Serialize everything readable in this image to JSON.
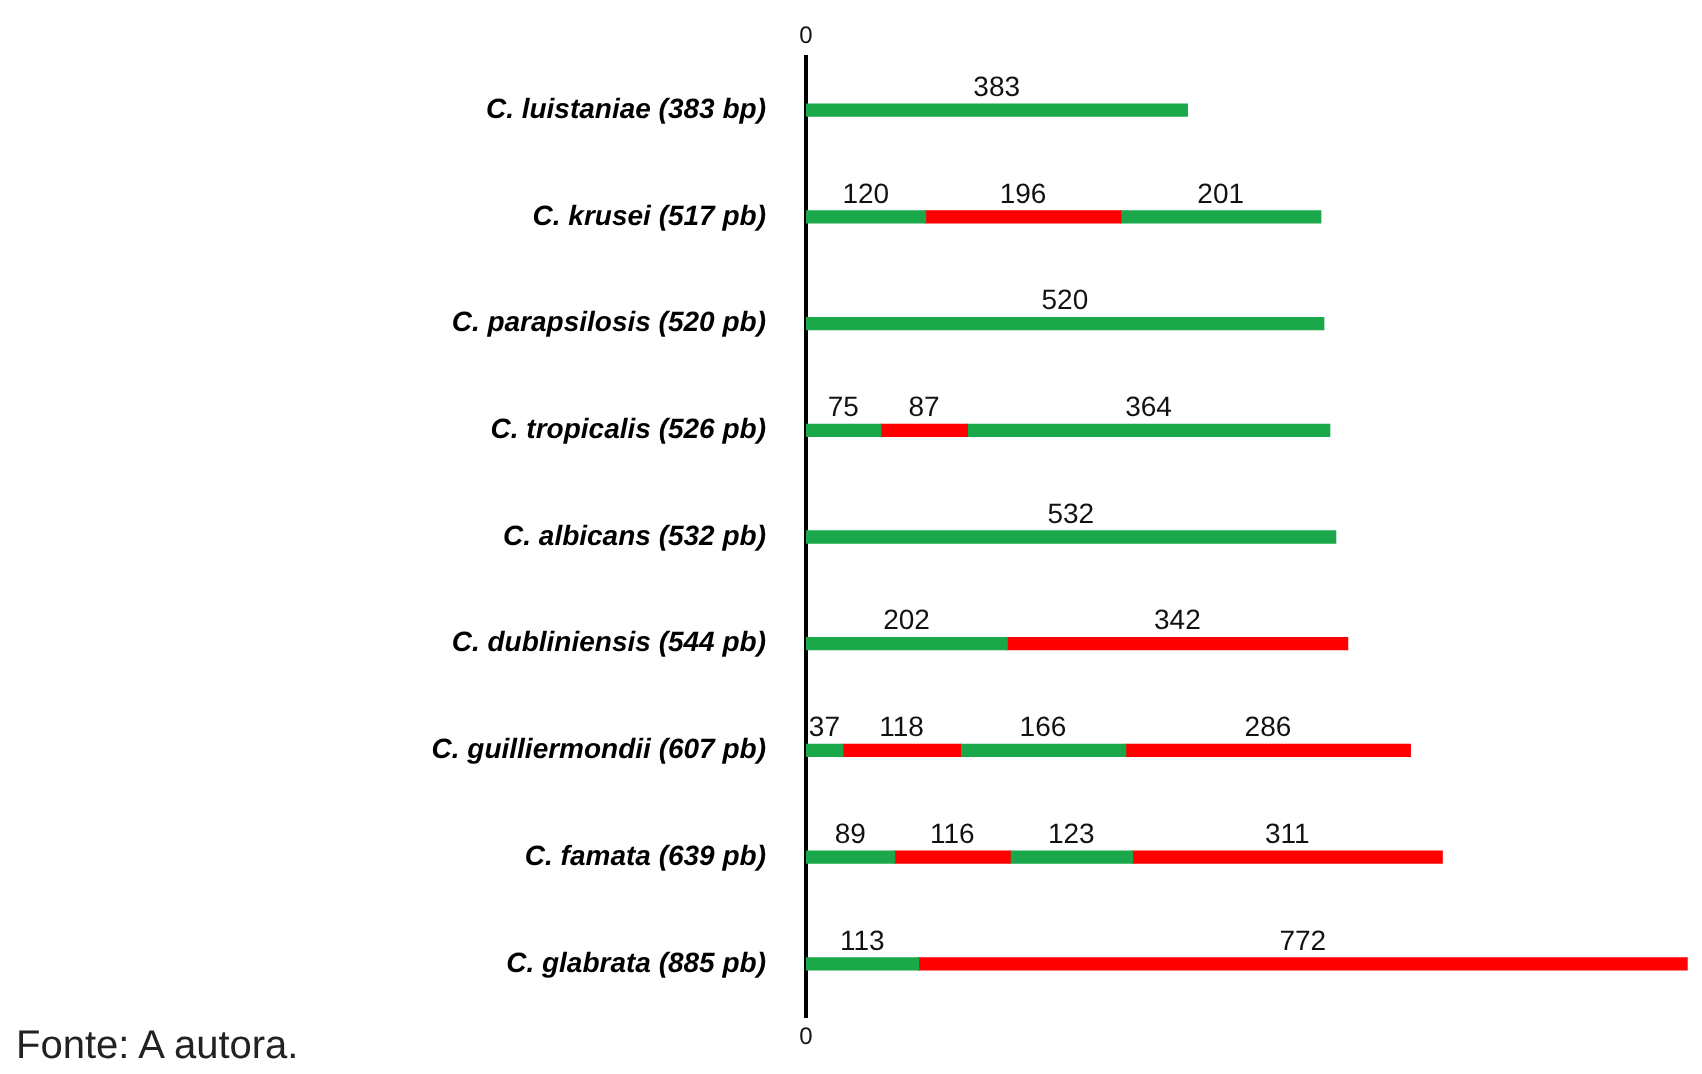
{
  "chart_data": {
    "type": "bar",
    "orientation": "horizontal",
    "stacked": true,
    "data_labels": true,
    "legend": false,
    "categories": [
      "C. luistaniae (383 bp)",
      "C. krusei (517 pb)",
      "C. parapsilosis (520 pb)",
      "C. tropicalis (526 pb)",
      "C. albicans (532 pb)",
      "C. dubliniensis (544 pb)",
      "C. guilliermondii (607 pb)",
      "C. famata (639 pb)",
      "C. glabrata (885 pb)"
    ],
    "series": [
      {
        "values": [
          383,
          120,
          520,
          75,
          532,
          202,
          37,
          89,
          113
        ],
        "colors": [
          "#1aa84b",
          "#1aa84b",
          "#1aa84b",
          "#1aa84b",
          "#1aa84b",
          "#1aa84b",
          "#1aa84b",
          "#1aa84b",
          "#1aa84b"
        ]
      },
      {
        "values": [
          null,
          196,
          null,
          87,
          null,
          342,
          118,
          116,
          772
        ],
        "colors": [
          "#ff0000",
          "#ff0000",
          "#ff0000",
          "#ff0000",
          "#ff0000",
          "#ff0000",
          "#ff0000",
          "#ff0000",
          "#ff0000"
        ]
      },
      {
        "values": [
          null,
          201,
          null,
          364,
          null,
          null,
          166,
          123,
          null
        ],
        "colors": [
          "#1aa84b",
          "#1aa84b",
          "#1aa84b",
          "#1aa84b",
          "#1aa84b",
          "#1aa84b",
          "#1aa84b",
          "#1aa84b",
          "#1aa84b"
        ]
      },
      {
        "values": [
          null,
          null,
          null,
          null,
          null,
          null,
          286,
          311,
          null
        ],
        "colors": [
          "#ff0000",
          "#ff0000",
          "#ff0000",
          "#ff0000",
          "#ff0000",
          "#ff0000",
          "#ff0000",
          "#ff0000",
          "#ff0000"
        ]
      }
    ],
    "annotations": [
      "0",
      "0",
      "Fonte: A autora."
    ]
  }
}
